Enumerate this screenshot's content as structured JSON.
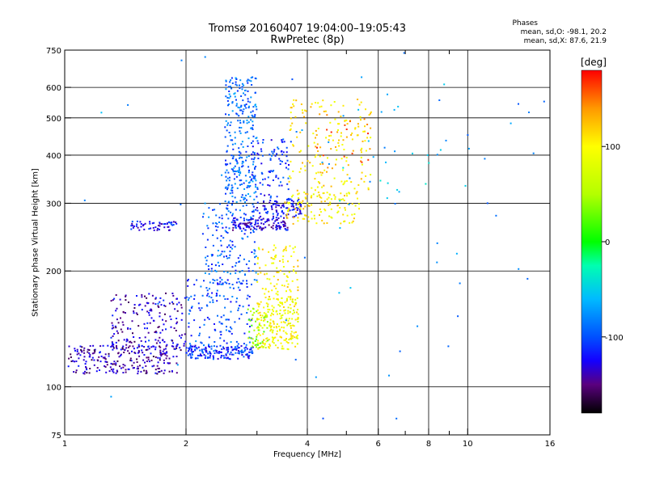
{
  "chart_data": {
    "type": "scatter",
    "title": "Tromsø 20160407 19:04:00–19:05:43",
    "subtitle": "RwPretec (8p)",
    "xlabel": "Frequency [MHz]",
    "ylabel": "Stationary phase Virtual Height [km]",
    "x_scale": "log",
    "y_scale": "log",
    "xlim": [
      1,
      16
    ],
    "ylim": [
      75,
      750
    ],
    "x_ticks": [
      1,
      2,
      4,
      6,
      8,
      10,
      16
    ],
    "x_tick_labels": [
      "1",
      "2",
      "4",
      "6",
      "8",
      "10",
      "16"
    ],
    "x_minor_ticks": [
      3,
      5,
      7,
      9
    ],
    "y_ticks": [
      75,
      100,
      200,
      300,
      400,
      500,
      600,
      750
    ],
    "y_tick_labels": [
      "75",
      "100",
      "200",
      "300",
      "400",
      "500",
      "600",
      "750"
    ],
    "grid": true,
    "stats": {
      "heading": "Phases",
      "o_line": "mean, sd,O:  -98.1, 20.2",
      "x_line": "mean, sd,X:   87.6, 21.9"
    },
    "colorbar": {
      "unit": "[deg]",
      "range": [
        -180,
        180
      ],
      "ticks": [
        100,
        0,
        -100
      ],
      "tick_labels": [
        "100",
        "0",
        "-100"
      ],
      "stops": [
        {
          "value": -180,
          "color": "#000000"
        },
        {
          "value": -150,
          "color": "#5a007f"
        },
        {
          "value": -125,
          "color": "#1400ff"
        },
        {
          "value": -100,
          "color": "#0050ff"
        },
        {
          "value": -60,
          "color": "#00bbff"
        },
        {
          "value": -25,
          "color": "#00ffb0"
        },
        {
          "value": 0,
          "color": "#00ff00"
        },
        {
          "value": 50,
          "color": "#b4ff00"
        },
        {
          "value": 100,
          "color": "#ffff00"
        },
        {
          "value": 140,
          "color": "#ff9900"
        },
        {
          "value": 180,
          "color": "#ff0000"
        }
      ]
    },
    "clusters": [
      {
        "f": [
          1.02,
          1.9
        ],
        "h": [
          108,
          128
        ],
        "phase": -140,
        "count": 230
      },
      {
        "f": [
          1.3,
          2.0
        ],
        "h": [
          122,
          175
        ],
        "phase": -135,
        "count": 200
      },
      {
        "f": [
          2.0,
          2.95
        ],
        "h": [
          118,
          128
        ],
        "phase": -110,
        "count": 160
      },
      {
        "f": [
          2.0,
          2.95
        ],
        "h": [
          128,
          190
        ],
        "phase": -100,
        "count": 140
      },
      {
        "f": [
          2.2,
          3.0
        ],
        "h": [
          185,
          300
        ],
        "phase": -95,
        "count": 170
      },
      {
        "f": [
          2.5,
          3.0
        ],
        "h": [
          300,
          640
        ],
        "phase": -90,
        "count": 280
      },
      {
        "f": [
          1.45,
          1.9
        ],
        "h": [
          255,
          270
        ],
        "phase": -120,
        "count": 55
      },
      {
        "f": [
          2.6,
          3.6
        ],
        "h": [
          255,
          275
        ],
        "phase": -130,
        "count": 130
      },
      {
        "f": [
          3.0,
          3.9
        ],
        "h": [
          275,
          310
        ],
        "phase": -120,
        "count": 90
      },
      {
        "f": [
          2.9,
          3.6
        ],
        "h": [
          310,
          440
        ],
        "phase": -110,
        "count": 90
      },
      {
        "f": [
          3.0,
          3.8
        ],
        "h": [
          125,
          170
        ],
        "phase": 95,
        "count": 220
      },
      {
        "f": [
          2.85,
          3.2
        ],
        "h": [
          125,
          160
        ],
        "phase": 40,
        "count": 45
      },
      {
        "f": [
          3.0,
          3.8
        ],
        "h": [
          170,
          235
        ],
        "phase": 105,
        "count": 90
      },
      {
        "f": [
          3.5,
          5.4
        ],
        "h": [
          265,
          320
        ],
        "phase": 105,
        "count": 120
      },
      {
        "f": [
          3.6,
          5.8
        ],
        "h": [
          320,
          560
        ],
        "phase": 110,
        "count": 170
      },
      {
        "f": [
          4.2,
          6.0
        ],
        "h": [
          370,
          520
        ],
        "phase": 150,
        "count": 25
      },
      {
        "f": [
          1.0,
          16.0
        ],
        "h": [
          75,
          750
        ],
        "phase": -80,
        "count": 55
      },
      {
        "f": [
          4.0,
          10.0
        ],
        "h": [
          300,
          650
        ],
        "phase": -60,
        "count": 30
      }
    ]
  }
}
